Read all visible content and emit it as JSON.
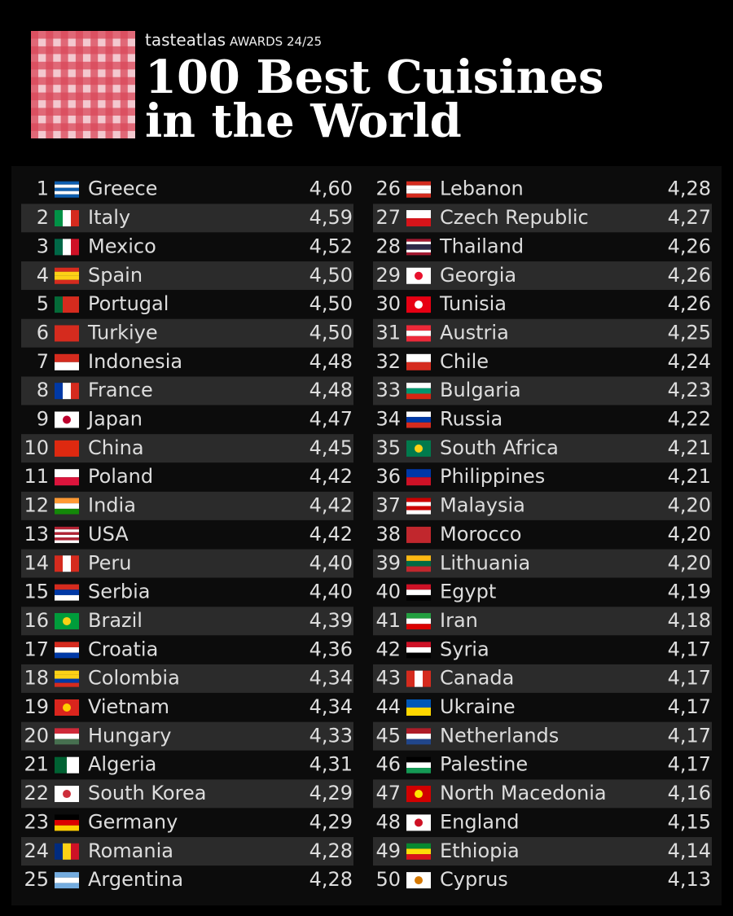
{
  "header": {
    "brand": "tasteatlas",
    "award": "AWARDS 24/25",
    "title": [
      "100 Best Cuisines",
      "in the World"
    ]
  },
  "table": {
    "rows": [
      [
        1,
        "Greece",
        "4,60"
      ],
      [
        2,
        "Italy",
        "4,59"
      ],
      [
        3,
        "Mexico",
        "4,52"
      ],
      [
        4,
        "Spain",
        "4,50"
      ],
      [
        5,
        "Portugal",
        "4,50"
      ],
      [
        6,
        "Turkiye",
        "4,50"
      ],
      [
        7,
        "Indonesia",
        "4,48"
      ],
      [
        8,
        "France",
        "4,48"
      ],
      [
        9,
        "Japan",
        "4,47"
      ],
      [
        10,
        "China",
        "4,45"
      ],
      [
        11,
        "Poland",
        "4,42"
      ],
      [
        12,
        "India",
        "4,42"
      ],
      [
        13,
        "USA",
        "4,42"
      ],
      [
        14,
        "Peru",
        "4,40"
      ],
      [
        15,
        "Serbia",
        "4,40"
      ],
      [
        16,
        "Brazil",
        "4,39"
      ],
      [
        17,
        "Croatia",
        "4,36"
      ],
      [
        18,
        "Colombia",
        "4,34"
      ],
      [
        19,
        "Vietnam",
        "4,34"
      ],
      [
        20,
        "Hungary",
        "4,33"
      ],
      [
        21,
        "Algeria",
        "4,31"
      ],
      [
        22,
        "South Korea",
        "4,29"
      ],
      [
        23,
        "Germany",
        "4,29"
      ],
      [
        24,
        "Romania",
        "4,28"
      ],
      [
        25,
        "Argentina",
        "4,28"
      ],
      [
        26,
        "Lebanon",
        "4,28"
      ],
      [
        27,
        "Czech Republic",
        "4,27"
      ],
      [
        28,
        "Thailand",
        "4,26"
      ],
      [
        29,
        "Georgia",
        "4,26"
      ],
      [
        30,
        "Tunisia",
        "4,26"
      ],
      [
        31,
        "Austria",
        "4,25"
      ],
      [
        32,
        "Chile",
        "4,24"
      ],
      [
        33,
        "Bulgaria",
        "4,23"
      ],
      [
        34,
        "Russia",
        "4,22"
      ],
      [
        35,
        "South Africa",
        "4,21"
      ],
      [
        36,
        "Philippines",
        "4,21"
      ],
      [
        37,
        "Malaysia",
        "4,20"
      ],
      [
        38,
        "Morocco",
        "4,20"
      ],
      [
        39,
        "Lithuania",
        "4,20"
      ],
      [
        40,
        "Egypt",
        "4,19"
      ],
      [
        41,
        "Iran",
        "4,18"
      ],
      [
        42,
        "Syria",
        "4,17"
      ],
      [
        43,
        "Canada",
        "4,17"
      ],
      [
        44,
        "Ukraine",
        "4,17"
      ],
      [
        45,
        "Netherlands",
        "4,17"
      ],
      [
        46,
        "Palestine",
        "4,17"
      ],
      [
        47,
        "North Macedonia",
        "4,16"
      ],
      [
        48,
        "England",
        "4,15"
      ],
      [
        49,
        "Ethiopia",
        "4,14"
      ],
      [
        50,
        "Cyprus",
        "4,13"
      ]
    ]
  }
}
